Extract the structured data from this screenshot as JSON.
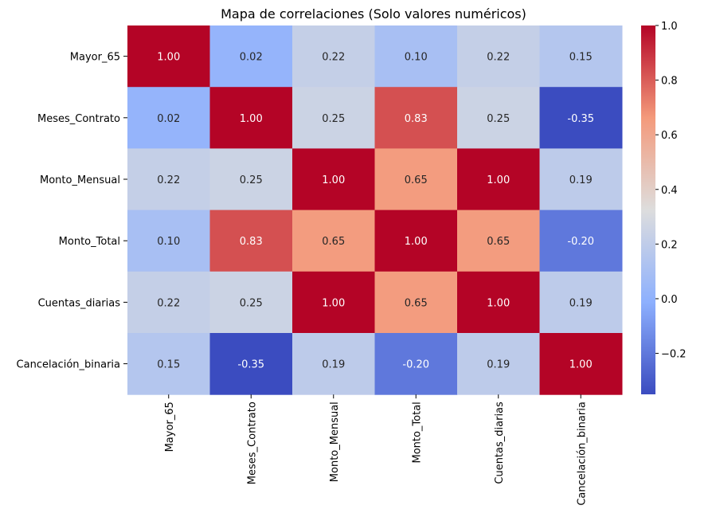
{
  "chart_data": {
    "type": "heatmap",
    "title": "Mapa de correlaciones (Solo valores numéricos)",
    "rows": [
      "Mayor_65",
      "Meses_Contrato",
      "Monto_Mensual",
      "Monto_Total",
      "Cuentas_diarias",
      "Cancelación_binaria"
    ],
    "columns": [
      "Mayor_65",
      "Meses_Contrato",
      "Monto_Mensual",
      "Monto_Total",
      "Cuentas_diarias",
      "Cancelación_binaria"
    ],
    "values": [
      [
        1.0,
        0.02,
        0.22,
        0.1,
        0.22,
        0.15
      ],
      [
        0.02,
        1.0,
        0.25,
        0.83,
        0.25,
        -0.35
      ],
      [
        0.22,
        0.25,
        1.0,
        0.65,
        1.0,
        0.19
      ],
      [
        0.1,
        0.83,
        0.65,
        1.0,
        0.65,
        -0.2
      ],
      [
        0.22,
        0.25,
        1.0,
        0.65,
        1.0,
        0.19
      ],
      [
        0.15,
        -0.35,
        0.19,
        -0.2,
        0.19,
        1.0
      ]
    ],
    "cell_labels": [
      [
        "1.00",
        "0.02",
        "0.22",
        "0.10",
        "0.22",
        "0.15"
      ],
      [
        "0.02",
        "1.00",
        "0.25",
        "0.83",
        "0.25",
        "-0.35"
      ],
      [
        "0.22",
        "0.25",
        "1.00",
        "0.65",
        "1.00",
        "0.19"
      ],
      [
        "0.10",
        "0.83",
        "0.65",
        "1.00",
        "0.65",
        "-0.20"
      ],
      [
        "0.22",
        "0.25",
        "1.00",
        "0.65",
        "1.00",
        "0.19"
      ],
      [
        "0.15",
        "-0.35",
        "0.19",
        "-0.20",
        "0.19",
        "1.00"
      ]
    ],
    "colormap": "coolwarm",
    "vmin": -0.35,
    "vmax": 1.0,
    "colorbar": {
      "ticks": [
        -0.2,
        0.0,
        0.2,
        0.4,
        0.6,
        0.8,
        1.0
      ],
      "tick_labels": [
        "−0.2",
        "0.0",
        "0.2",
        "0.4",
        "0.6",
        "0.8",
        "1.0"
      ],
      "placement": "right"
    }
  }
}
